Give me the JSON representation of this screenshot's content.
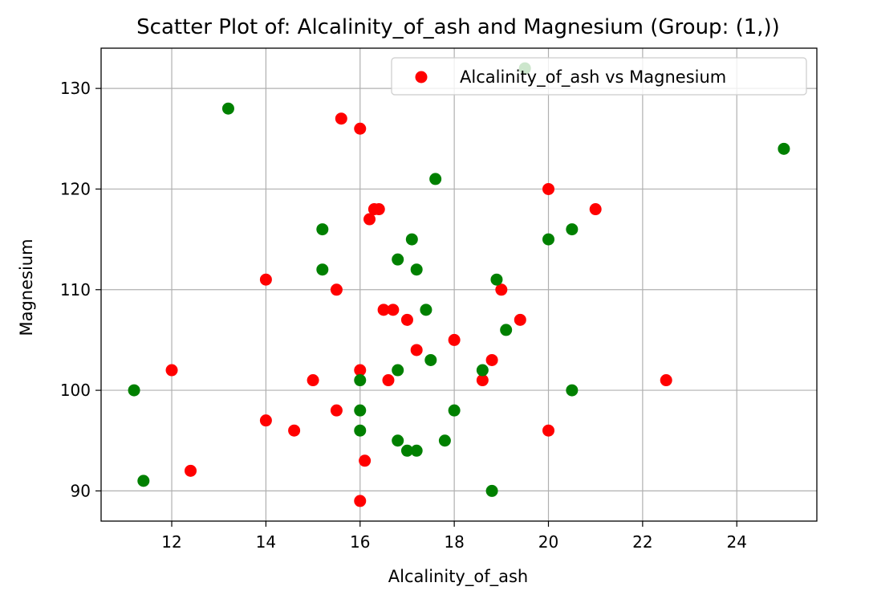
{
  "chart_data": {
    "type": "scatter",
    "title": "Scatter Plot of: Alcalinity_of_ash and Magnesium (Group: (1,))",
    "xlabel": "Alcalinity_of_ash",
    "ylabel": "Magnesium",
    "xlim": [
      10.5,
      25.7
    ],
    "ylim": [
      87,
      134
    ],
    "xticks": [
      12,
      14,
      16,
      18,
      20,
      22,
      24
    ],
    "yticks": [
      90,
      100,
      110,
      120,
      130
    ],
    "grid": true,
    "legend": {
      "placement": "top-right",
      "entries": [
        "Alcalinity_of_ash vs Magnesium"
      ]
    },
    "series": [
      {
        "name": "Alcalinity_of_ash vs Magnesium",
        "color": "#ff0000",
        "points": [
          {
            "x": 15.6,
            "y": 127
          },
          {
            "x": 16.0,
            "y": 126
          },
          {
            "x": 16.3,
            "y": 118
          },
          {
            "x": 16.4,
            "y": 118
          },
          {
            "x": 16.2,
            "y": 117
          },
          {
            "x": 14.0,
            "y": 111
          },
          {
            "x": 15.5,
            "y": 110
          },
          {
            "x": 16.5,
            "y": 108
          },
          {
            "x": 16.7,
            "y": 108
          },
          {
            "x": 17.0,
            "y": 107
          },
          {
            "x": 17.2,
            "y": 104
          },
          {
            "x": 18.0,
            "y": 105
          },
          {
            "x": 12.0,
            "y": 102
          },
          {
            "x": 15.0,
            "y": 101
          },
          {
            "x": 16.0,
            "y": 102
          },
          {
            "x": 16.6,
            "y": 101
          },
          {
            "x": 18.6,
            "y": 101
          },
          {
            "x": 18.8,
            "y": 103
          },
          {
            "x": 19.0,
            "y": 110
          },
          {
            "x": 19.4,
            "y": 107
          },
          {
            "x": 20.0,
            "y": 120
          },
          {
            "x": 21.0,
            "y": 118
          },
          {
            "x": 22.5,
            "y": 101
          },
          {
            "x": 20.0,
            "y": 96
          },
          {
            "x": 14.0,
            "y": 97
          },
          {
            "x": 14.6,
            "y": 96
          },
          {
            "x": 15.5,
            "y": 98
          },
          {
            "x": 16.1,
            "y": 93
          },
          {
            "x": 12.4,
            "y": 92
          },
          {
            "x": 16.0,
            "y": 89
          }
        ]
      },
      {
        "color": "#008000",
        "points": [
          {
            "x": 19.5,
            "y": 132
          },
          {
            "x": 13.2,
            "y": 128
          },
          {
            "x": 25.0,
            "y": 124
          },
          {
            "x": 17.6,
            "y": 121
          },
          {
            "x": 15.2,
            "y": 116
          },
          {
            "x": 17.1,
            "y": 115
          },
          {
            "x": 20.0,
            "y": 115
          },
          {
            "x": 20.5,
            "y": 116
          },
          {
            "x": 15.2,
            "y": 112
          },
          {
            "x": 16.8,
            "y": 113
          },
          {
            "x": 17.2,
            "y": 112
          },
          {
            "x": 18.9,
            "y": 111
          },
          {
            "x": 17.4,
            "y": 108
          },
          {
            "x": 19.1,
            "y": 106
          },
          {
            "x": 17.5,
            "y": 103
          },
          {
            "x": 16.8,
            "y": 102
          },
          {
            "x": 18.6,
            "y": 102
          },
          {
            "x": 16.0,
            "y": 101
          },
          {
            "x": 11.2,
            "y": 100
          },
          {
            "x": 20.5,
            "y": 100
          },
          {
            "x": 16.0,
            "y": 98
          },
          {
            "x": 18.0,
            "y": 98
          },
          {
            "x": 16.0,
            "y": 96
          },
          {
            "x": 16.8,
            "y": 95
          },
          {
            "x": 17.8,
            "y": 95
          },
          {
            "x": 17.0,
            "y": 94
          },
          {
            "x": 17.2,
            "y": 94
          },
          {
            "x": 11.4,
            "y": 91
          },
          {
            "x": 18.8,
            "y": 90
          }
        ]
      }
    ]
  }
}
